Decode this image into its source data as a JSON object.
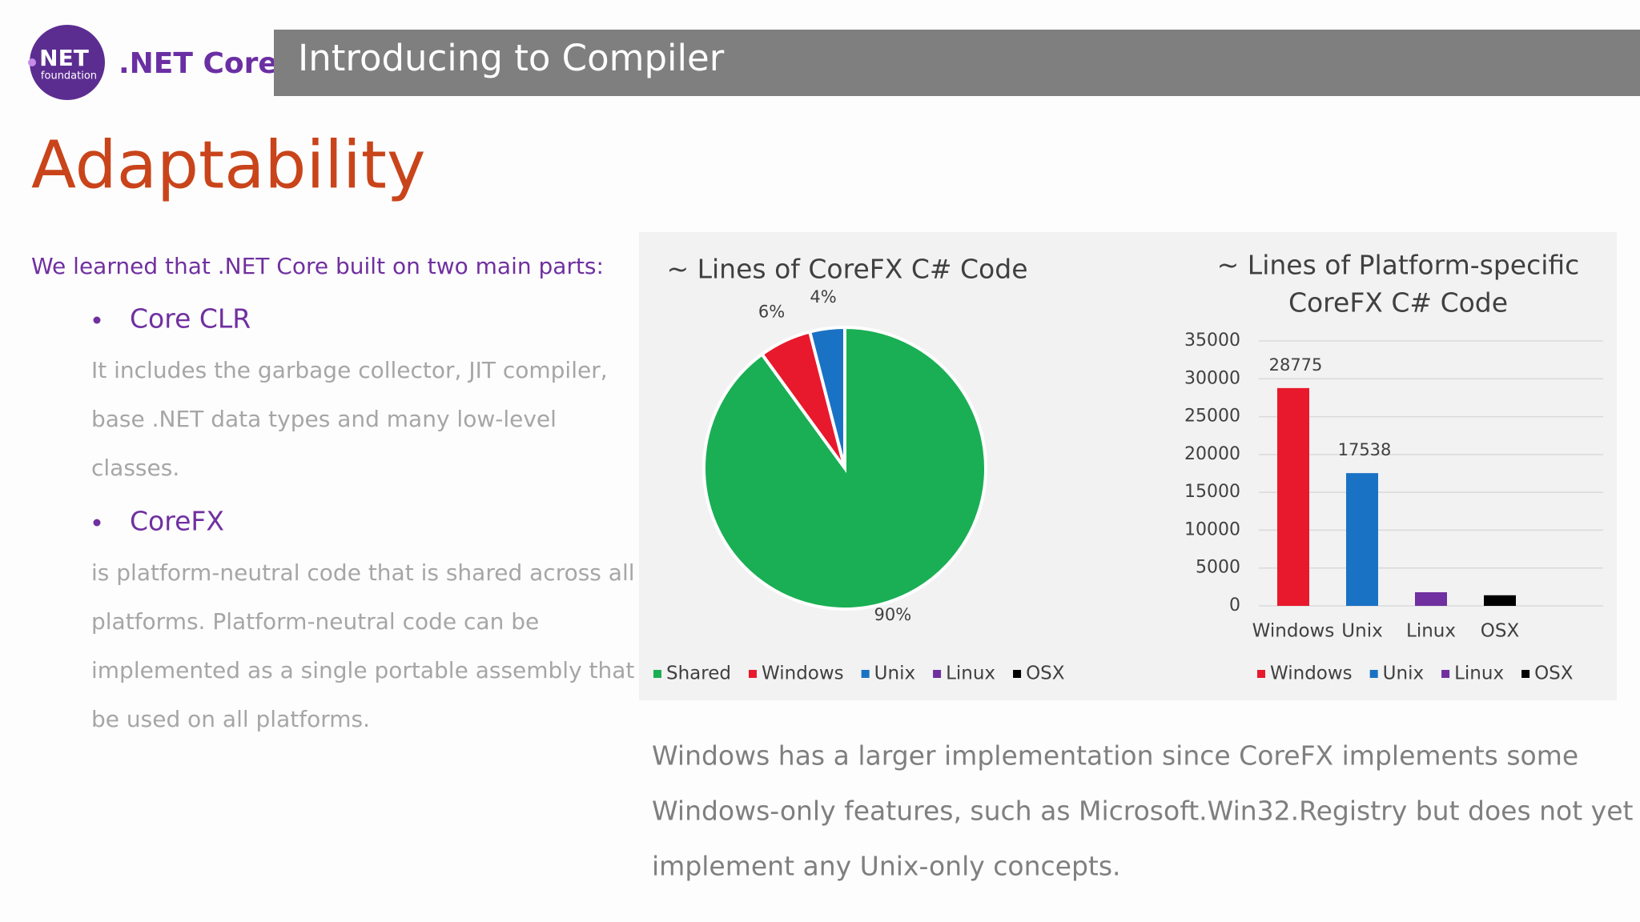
{
  "logo": {
    "mark": "NET",
    "sub": "foundation",
    "brand": ".NET Core"
  },
  "header": {
    "title": "Introducing to Compiler"
  },
  "heading": "Adaptability",
  "intro": "We learned that .NET Core built on two main parts:",
  "bullets": [
    {
      "title": "Core CLR",
      "lines": [
        " It includes the garbage collector, JIT compiler,",
        "base .NET data types and many low-level",
        "classes."
      ]
    },
    {
      "title": "CoreFX",
      "lines": [
        "is platform-neutral code that is shared across all",
        "platforms. Platform-neutral code can be",
        "implemented as a single portable assembly that",
        "be used on all platforms."
      ]
    }
  ],
  "note": [
    "Windows has a larger implementation since CoreFX implements some",
    "Windows-only features, such as Microsoft.Win32.Registry but does not yet",
    "implement any Unix-only concepts."
  ],
  "chart_data": [
    {
      "type": "pie",
      "title": "~ Lines of CoreFX C# Code",
      "categories": [
        "Shared",
        "Windows",
        "Unix",
        "Linux",
        "OSX"
      ],
      "values": [
        90,
        6,
        4,
        0,
        0
      ],
      "value_labels": [
        "90%",
        "6%",
        "4%",
        null,
        null
      ],
      "colors": [
        "#1aaf54",
        "#e8192c",
        "#1a72c4",
        "#7030a0",
        "#000000"
      ],
      "legend": "bottom"
    },
    {
      "type": "bar",
      "title": [
        "~ Lines of Platform-specific",
        "CoreFX C# Code"
      ],
      "categories": [
        "Windows",
        "Unix",
        "Linux",
        "OSX"
      ],
      "values": [
        28775,
        17538,
        1800,
        1400
      ],
      "value_labels": [
        "28775",
        "17538",
        null,
        null
      ],
      "colors": [
        "#e8192c",
        "#1a72c4",
        "#7030a0",
        "#000000"
      ],
      "ylim": [
        0,
        35000
      ],
      "yticks": [
        0,
        5000,
        10000,
        15000,
        20000,
        25000,
        30000,
        35000
      ],
      "grid": true,
      "legend": "bottom"
    }
  ]
}
